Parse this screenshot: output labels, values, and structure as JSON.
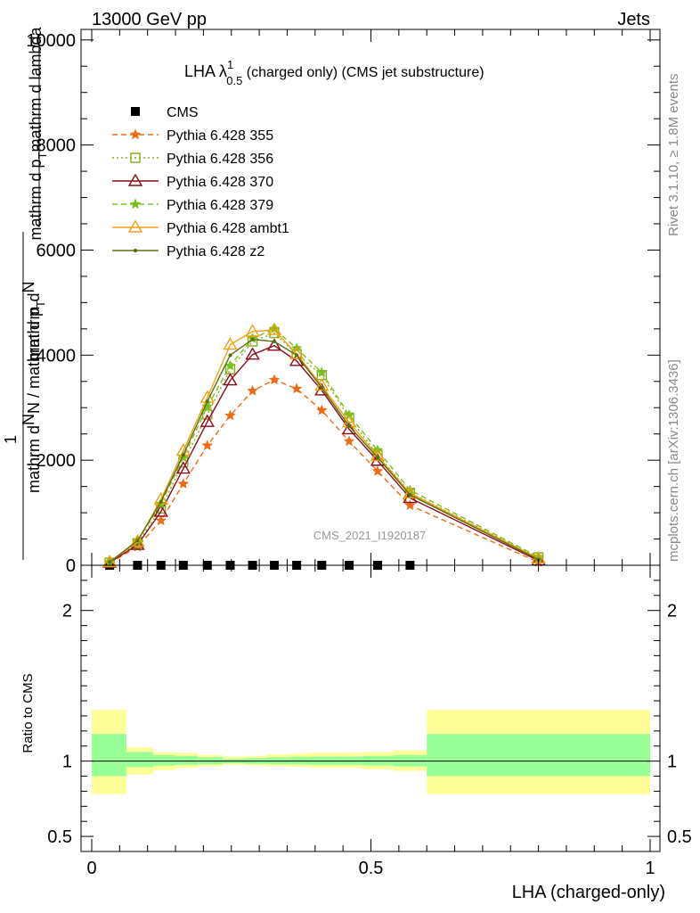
{
  "header": {
    "left": "13000 GeV pp",
    "right": "Jets"
  },
  "side": {
    "rivet": "Rivet 3.1.10, ≥ 1.8M events",
    "mcplots": "mcplots.cern.ch [arXiv:1306.3436]"
  },
  "colors": {
    "cms": "#000000",
    "p355": "#ee6a14",
    "p356": "#8aaa1e",
    "p370": "#8b0a1a",
    "p379": "#79c01a",
    "pambt1": "#f0a010",
    "pz2": "#5a6e10",
    "band_inner": "#99ff99",
    "band_outer": "#ffff99"
  },
  "chart_data": [
    {
      "type": "line",
      "title": {
        "main": "LHA λ",
        "sup": "1",
        "sub": "0.5",
        "rest": " (charged only) (CMS jet substructure)"
      },
      "ylabel": {
        "left_num": "mathrm d",
        "left_num_end": "N",
        "left_den": "mathrm d p",
        "left_den_sub": "T",
        "left_den_end": "mathrm d lambda",
        "right_num": "1",
        "right_den": "mathrm d",
        "right_den_mid": "N / mathrm d p",
        "right_den_sub": "T"
      },
      "watermark": "CMS_2021_I1920187",
      "xlim": [
        -0.05,
        1.0
      ],
      "ylim": [
        0,
        10200
      ],
      "yticks": [
        {
          "v": 0,
          "label": "0"
        },
        {
          "v": 2000,
          "label": "2000"
        },
        {
          "v": 4000,
          "label": "4000"
        },
        {
          "v": 6000,
          "label": "6000"
        },
        {
          "v": 8000,
          "label": "8000"
        },
        {
          "v": 10000,
          "label": "10000"
        }
      ],
      "x": [
        0.032,
        0.082,
        0.124,
        0.164,
        0.207,
        0.248,
        0.288,
        0.327,
        0.367,
        0.412,
        0.461,
        0.512,
        0.57,
        0.8
      ],
      "series": [
        {
          "name": "CMS",
          "key": "cms",
          "marker": "square",
          "dash": "",
          "values": [
            0,
            0,
            0,
            0,
            0,
            0,
            0,
            0,
            0,
            0,
            0,
            0,
            0,
            null
          ]
        },
        {
          "name": "Pythia 6.428 355",
          "key": "p355",
          "marker": "star",
          "dash": "6,4",
          "values": [
            40,
            350,
            850,
            1550,
            2280,
            2850,
            3320,
            3530,
            3360,
            2950,
            2360,
            1790,
            1140,
            60
          ]
        },
        {
          "name": "Pythia 6.428 356",
          "key": "p356",
          "marker": "square-open",
          "dash": "2,3",
          "values": [
            50,
            420,
            1080,
            1960,
            2870,
            3730,
            4260,
            4420,
            4020,
            3620,
            2810,
            2100,
            1380,
            150
          ]
        },
        {
          "name": "Pythia 6.428 370",
          "key": "p370",
          "marker": "triangle-open",
          "dash": "",
          "values": [
            50,
            390,
            1020,
            1840,
            2730,
            3520,
            4010,
            4180,
            3890,
            3330,
            2590,
            1990,
            1280,
            90
          ]
        },
        {
          "name": "Pythia 6.428 379",
          "key": "p379",
          "marker": "star",
          "dash": "6,4",
          "values": [
            60,
            460,
            1170,
            2050,
            3020,
            3800,
            4320,
            4500,
            4130,
            3670,
            2860,
            2190,
            1430,
            160
          ]
        },
        {
          "name": "Pythia 6.428 ambt1",
          "key": "pambt1",
          "marker": "triangle-open",
          "dash": "",
          "values": [
            60,
            450,
            1250,
            2180,
            3190,
            4200,
            4450,
            4480,
            4020,
            3420,
            2720,
            2080,
            1370,
            130
          ]
        },
        {
          "name": "Pythia 6.428 z2",
          "key": "pz2",
          "marker": "dot",
          "dash": "",
          "values": [
            60,
            470,
            1210,
            2100,
            3120,
            4000,
            4300,
            4260,
            4000,
            3380,
            2650,
            2050,
            1340,
            110
          ]
        }
      ]
    },
    {
      "type": "area",
      "ylabel": "Ratio to CMS",
      "xlabel": "LHA (charged-only)",
      "ylim": [
        0.4,
        2.3
      ],
      "yticks": [
        {
          "v": 0.5,
          "label": "0.5"
        },
        {
          "v": 1,
          "label": "1"
        },
        {
          "v": 2,
          "label": "2"
        }
      ],
      "xticks": [
        {
          "v": 0,
          "label": "0"
        },
        {
          "v": 0.5,
          "label": "0.5"
        },
        {
          "v": 1,
          "label": "1"
        }
      ],
      "bins": [
        {
          "lo": 0.0,
          "hi": 0.062,
          "in_lo": 0.9,
          "in_hi": 1.18,
          "out_lo": 0.78,
          "out_hi": 1.34
        },
        {
          "lo": 0.062,
          "hi": 0.11,
          "in_lo": 0.96,
          "in_hi": 1.06,
          "out_lo": 0.91,
          "out_hi": 1.09
        },
        {
          "lo": 0.11,
          "hi": 0.15,
          "in_lo": 0.97,
          "in_hi": 1.04,
          "out_lo": 0.94,
          "out_hi": 1.06
        },
        {
          "lo": 0.15,
          "hi": 0.19,
          "in_lo": 0.975,
          "in_hi": 1.035,
          "out_lo": 0.955,
          "out_hi": 1.055
        },
        {
          "lo": 0.19,
          "hi": 0.235,
          "in_lo": 0.98,
          "in_hi": 1.025,
          "out_lo": 0.965,
          "out_hi": 1.04
        },
        {
          "lo": 0.235,
          "hi": 0.275,
          "in_lo": 0.985,
          "in_hi": 1.015,
          "out_lo": 0.975,
          "out_hi": 1.03
        },
        {
          "lo": 0.275,
          "hi": 0.315,
          "in_lo": 0.982,
          "in_hi": 1.02,
          "out_lo": 0.97,
          "out_hi": 1.035
        },
        {
          "lo": 0.315,
          "hi": 0.355,
          "in_lo": 0.98,
          "in_hi": 1.025,
          "out_lo": 0.965,
          "out_hi": 1.045
        },
        {
          "lo": 0.355,
          "hi": 0.39,
          "in_lo": 0.978,
          "in_hi": 1.028,
          "out_lo": 0.962,
          "out_hi": 1.05
        },
        {
          "lo": 0.39,
          "hi": 0.44,
          "in_lo": 0.975,
          "in_hi": 1.03,
          "out_lo": 0.955,
          "out_hi": 1.055
        },
        {
          "lo": 0.44,
          "hi": 0.485,
          "in_lo": 0.975,
          "in_hi": 1.03,
          "out_lo": 0.955,
          "out_hi": 1.055
        },
        {
          "lo": 0.485,
          "hi": 0.54,
          "in_lo": 0.97,
          "in_hi": 1.035,
          "out_lo": 0.945,
          "out_hi": 1.06
        },
        {
          "lo": 0.54,
          "hi": 0.6,
          "in_lo": 0.965,
          "in_hi": 1.04,
          "out_lo": 0.935,
          "out_hi": 1.07
        },
        {
          "lo": 0.6,
          "hi": 1.0,
          "in_lo": 0.9,
          "in_hi": 1.18,
          "out_lo": 0.78,
          "out_hi": 1.34
        }
      ],
      "refline": 1
    }
  ]
}
